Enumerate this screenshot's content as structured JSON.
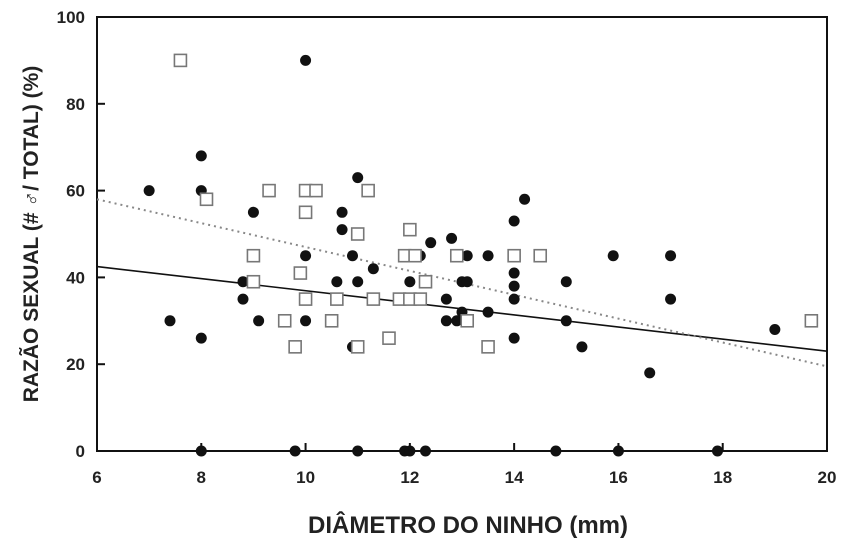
{
  "chart_data": {
    "type": "scatter",
    "xlabel": "DIÂMETRO DO NINHO (mm)",
    "ylabel": "RAZÃO SEXUAL (# ♂/ TOTAL) (%)",
    "xlim": [
      6,
      20
    ],
    "ylim": [
      0,
      100
    ],
    "xticks": [
      "6",
      "8",
      "10",
      "12",
      "14",
      "16",
      "18",
      "20"
    ],
    "yticks": [
      "0",
      "20",
      "40",
      "60",
      "80",
      "100"
    ],
    "grid": false,
    "series": [
      {
        "marker": "filled-circle",
        "color": "#111111",
        "points": [
          [
            7.0,
            60
          ],
          [
            7.4,
            30
          ],
          [
            8.0,
            68
          ],
          [
            8.0,
            60
          ],
          [
            8.0,
            26
          ],
          [
            8.0,
            0
          ],
          [
            8.8,
            39
          ],
          [
            8.8,
            35
          ],
          [
            9.0,
            55
          ],
          [
            9.1,
            30
          ],
          [
            9.8,
            0
          ],
          [
            10.0,
            90
          ],
          [
            10.0,
            45
          ],
          [
            10.0,
            30
          ],
          [
            10.6,
            39
          ],
          [
            10.7,
            55
          ],
          [
            10.7,
            51
          ],
          [
            10.9,
            45
          ],
          [
            10.9,
            24
          ],
          [
            11.0,
            63
          ],
          [
            11.0,
            39
          ],
          [
            11.0,
            0
          ],
          [
            11.3,
            42
          ],
          [
            11.3,
            35
          ],
          [
            12.0,
            45
          ],
          [
            12.0,
            39
          ],
          [
            11.9,
            0
          ],
          [
            12.0,
            0
          ],
          [
            12.2,
            45
          ],
          [
            12.3,
            0
          ],
          [
            12.4,
            48
          ],
          [
            12.7,
            35
          ],
          [
            12.8,
            49
          ],
          [
            12.7,
            30
          ],
          [
            12.9,
            30
          ],
          [
            13.0,
            32
          ],
          [
            13.0,
            39
          ],
          [
            13.1,
            39
          ],
          [
            13.1,
            45
          ],
          [
            13.5,
            45
          ],
          [
            13.5,
            32
          ],
          [
            14.0,
            53
          ],
          [
            14.0,
            41
          ],
          [
            14.0,
            38
          ],
          [
            14.0,
            35
          ],
          [
            14.0,
            26
          ],
          [
            14.2,
            58
          ],
          [
            14.8,
            0
          ],
          [
            15.0,
            39
          ],
          [
            15.0,
            30
          ],
          [
            15.3,
            24
          ],
          [
            15.9,
            45
          ],
          [
            16.0,
            0
          ],
          [
            16.6,
            18
          ],
          [
            17.0,
            45
          ],
          [
            17.0,
            35
          ],
          [
            17.9,
            0
          ],
          [
            19.0,
            28
          ]
        ]
      },
      {
        "marker": "open-square",
        "color": "#777777",
        "points": [
          [
            7.6,
            90
          ],
          [
            8.1,
            58
          ],
          [
            9.0,
            45
          ],
          [
            9.0,
            39
          ],
          [
            9.3,
            60
          ],
          [
            9.6,
            30
          ],
          [
            9.8,
            24
          ],
          [
            9.9,
            41
          ],
          [
            10.0,
            60
          ],
          [
            10.0,
            55
          ],
          [
            10.0,
            35
          ],
          [
            10.2,
            60
          ],
          [
            10.5,
            30
          ],
          [
            10.6,
            35
          ],
          [
            11.0,
            50
          ],
          [
            11.0,
            24
          ],
          [
            11.2,
            60
          ],
          [
            11.3,
            35
          ],
          [
            11.6,
            26
          ],
          [
            11.8,
            35
          ],
          [
            11.9,
            45
          ],
          [
            12.0,
            51
          ],
          [
            12.1,
            45
          ],
          [
            12.0,
            35
          ],
          [
            12.2,
            35
          ],
          [
            12.3,
            39
          ],
          [
            12.9,
            45
          ],
          [
            13.1,
            30
          ],
          [
            13.5,
            24
          ],
          [
            14.0,
            45
          ],
          [
            14.5,
            45
          ],
          [
            19.7,
            30
          ]
        ]
      }
    ],
    "trendlines": [
      {
        "series": 0,
        "style": "solid",
        "x": [
          6,
          20
        ],
        "y": [
          42.5,
          23
        ]
      },
      {
        "series": 1,
        "style": "dotted",
        "x": [
          6,
          20
        ],
        "y": [
          58,
          19.5
        ]
      }
    ]
  }
}
